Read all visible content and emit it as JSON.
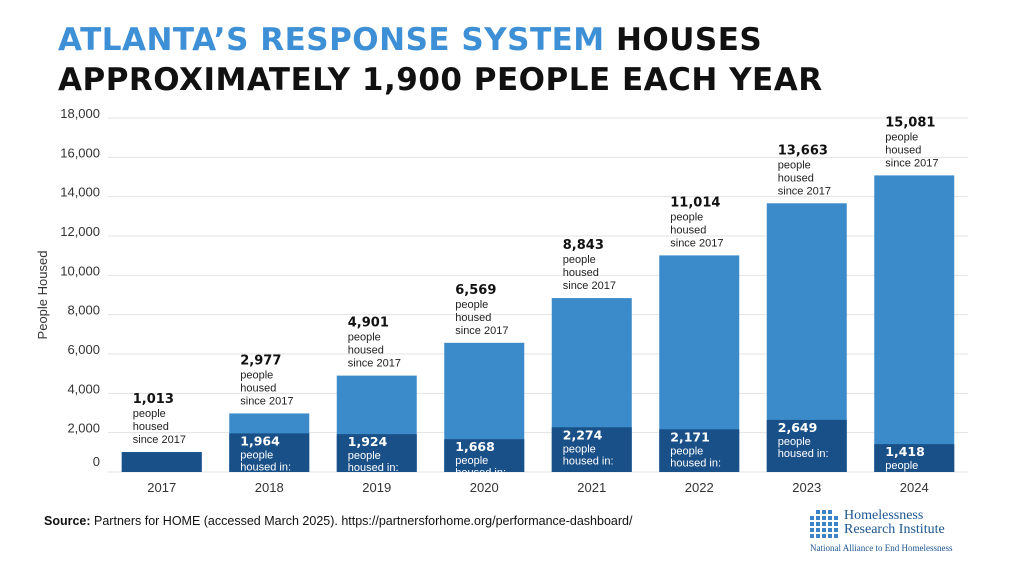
{
  "title": {
    "accent": "ATLANTA’S RESPONSE SYSTEM",
    "rest": " HOUSES",
    "line2": "APPROXIMATELY 1,900 PEOPLE EACH YEAR"
  },
  "colors": {
    "accent": "#3d8fd6",
    "cumulative_bar": "#3b8ac9",
    "annual_bar": "#1a5088",
    "grid": "#e3e3e3"
  },
  "chart_data": {
    "type": "bar",
    "ylabel": "People Housed",
    "xlabel": "",
    "ylim": [
      0,
      18000
    ],
    "yticks": [
      0,
      2000,
      4000,
      6000,
      8000,
      10000,
      12000,
      14000,
      16000,
      18000
    ],
    "ytick_labels": [
      "0",
      "2,000",
      "4,000",
      "6,000",
      "8,000",
      "10,000",
      "12,000",
      "14,000",
      "16,000",
      "18,000"
    ],
    "grid": true,
    "categories": [
      "2017",
      "2018",
      "2019",
      "2020",
      "2021",
      "2022",
      "2023",
      "2024"
    ],
    "series": [
      {
        "values": [
          1013,
          2977,
          4901,
          6569,
          8843,
          11014,
          13663,
          15081
        ],
        "labels": [
          "1,013",
          "2,977",
          "4,901",
          "6,569",
          "8,843",
          "11,014",
          "13,663",
          "15,081"
        ],
        "label_caption": [
          "people",
          "housed",
          "since 2017"
        ]
      },
      {
        "values": [
          1013,
          1964,
          1924,
          1668,
          2274,
          2171,
          2649,
          1418
        ],
        "labels": [
          null,
          "1,964",
          "1,924",
          "1,668",
          "2,274",
          "2,171",
          "2,649",
          "1,418"
        ],
        "label_caption": [
          "people",
          "housed in:"
        ]
      }
    ]
  },
  "source": {
    "label": "Source:",
    "text": " Partners for HOME (accessed March 2025). https://partnersforhome.org/performance-dashboard/"
  },
  "logo": {
    "name": "Homelessness\nResearch Institute",
    "tagline": "National Alliance to End Homelessness"
  }
}
